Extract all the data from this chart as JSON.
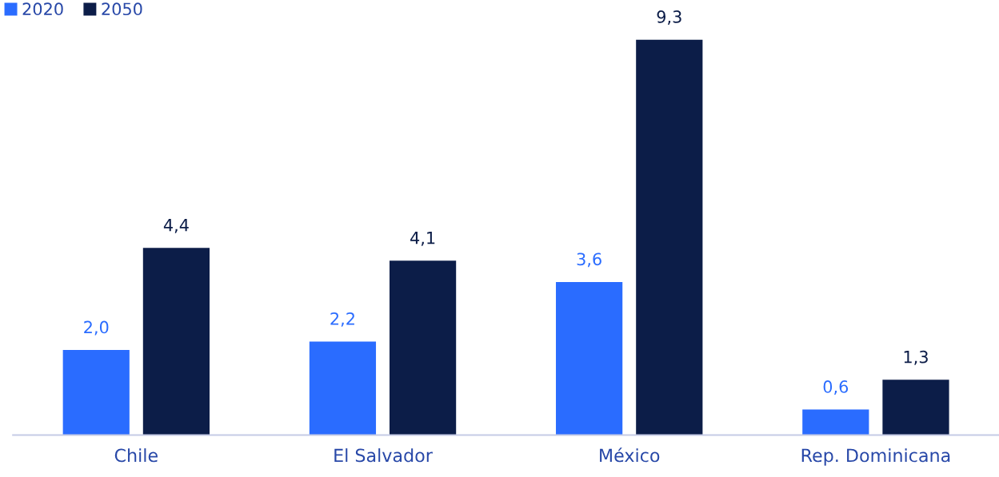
{
  "chart_data": {
    "type": "bar",
    "categories": [
      "Chile",
      "El Salvador",
      "México",
      "Rep. Dominicana"
    ],
    "series": [
      {
        "name": "2020",
        "color": "#2a6cff",
        "values": [
          2.0,
          2.2,
          3.6,
          0.6
        ],
        "value_labels": [
          "2,0",
          "2,2",
          "3,6",
          "0,6"
        ]
      },
      {
        "name": "2050",
        "color": "#0c1d48",
        "values": [
          4.4,
          4.1,
          9.3,
          1.3
        ],
        "value_labels": [
          "4,4",
          "4,1",
          "9,3",
          "1,3"
        ]
      }
    ],
    "legend": "top left",
    "grid": false
  }
}
